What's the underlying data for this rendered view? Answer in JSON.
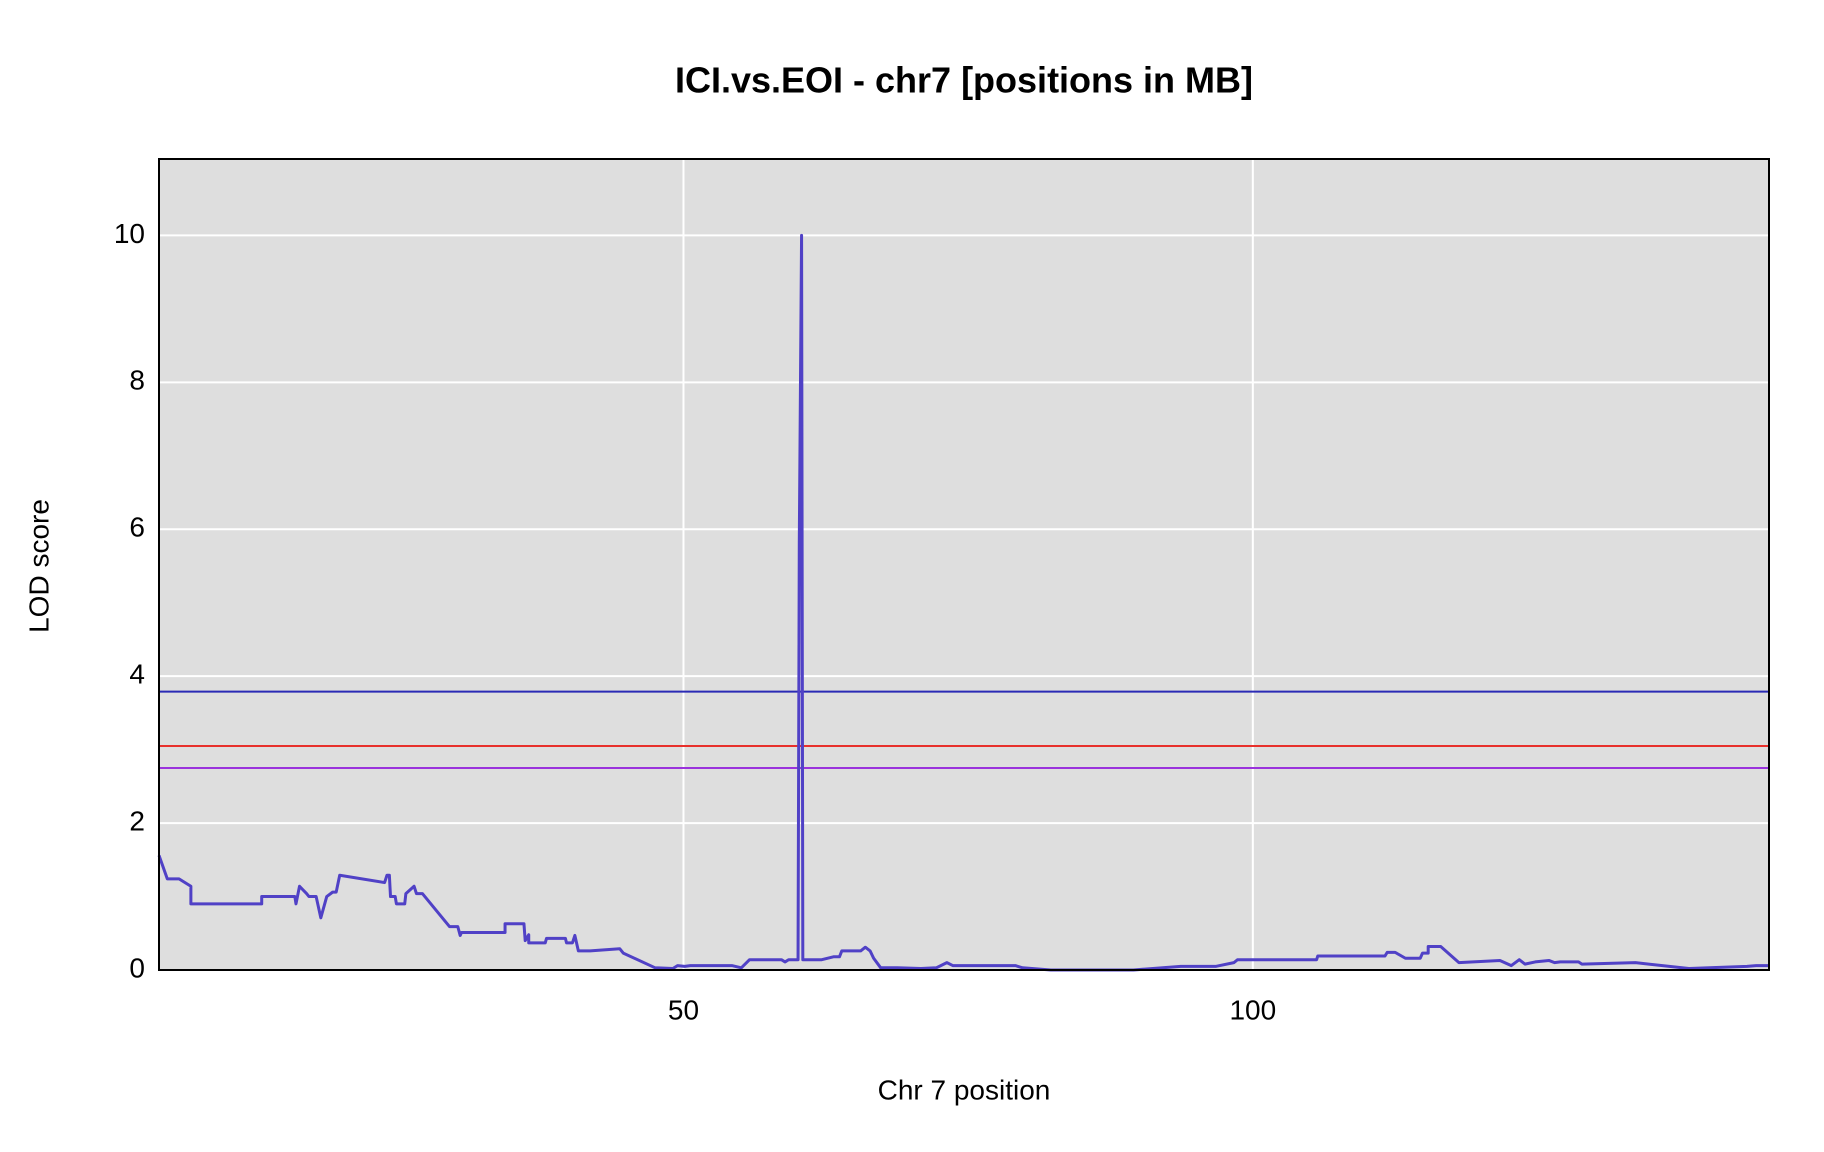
{
  "chart_data": {
    "type": "line",
    "title": "ICI.vs.EOI - chr7 [positions in MB]",
    "x_label": "Chr 7 position",
    "y_label": "LOD score",
    "background": "#dedede",
    "grid": true,
    "xlim": [
      3.94,
      145.33
    ],
    "xticks": [
      50,
      100
    ],
    "ylim": [
      0,
      11.04
    ],
    "yticks": [
      0,
      2,
      4,
      6,
      8,
      10
    ],
    "x": [
      3.94,
      4.67,
      5.7,
      6.74,
      6.74,
      10.16,
      12.96,
      12.96,
      15.87,
      15.97,
      16.28,
      16.9,
      17.11,
      17.74,
      18.15,
      18.67,
      19.19,
      19.5,
      19.81,
      23.75,
      23.96,
      24.17,
      24.27,
      24.68,
      24.79,
      25.52,
      25.62,
      26.34,
      26.55,
      27.07,
      29.46,
      30.18,
      30.39,
      30.5,
      34.33,
      34.33,
      35.99,
      36.1,
      36.41,
      36.41,
      37.86,
      37.97,
      39.63,
      39.73,
      40.25,
      40.46,
      40.77,
      41.8,
      44.4,
      44.71,
      47.51,
      49.07,
      49.48,
      50.1,
      50.6,
      54.25,
      55.08,
      55.8,
      58.6,
      58.92,
      59.23,
      60.06,
      60.17,
      60.37,
      60.48,
      62.14,
      63.17,
      63.7,
      63.9,
      65.56,
      65.97,
      66.39,
      66.7,
      67.32,
      68.78,
      70.85,
      72.2,
      72.6,
      73.13,
      73.65,
      79.15,
      79.77,
      80.6,
      82.26,
      89.52,
      93.67,
      96.78,
      98.34,
      98.65,
      105.6,
      105.7,
      111.6,
      111.8,
      112.5,
      113.4,
      114.7,
      114.9,
      115.4,
      115.4,
      116.5,
      118.1,
      121.7,
      122.7,
      123.4,
      123.9,
      124.8,
      126.0,
      126.5,
      127.0,
      128.6,
      128.9,
      133.6,
      138.3,
      143.4,
      144.2,
      145.33
    ],
    "series": [
      {
        "color": "#5041c6",
        "values": [
          1.56,
          1.24,
          1.24,
          1.14,
          0.9,
          0.9,
          0.9,
          1.0,
          1.0,
          0.9,
          1.14,
          1.04,
          1.0,
          1.0,
          0.71,
          1.0,
          1.06,
          1.06,
          1.29,
          1.19,
          1.29,
          1.29,
          1.0,
          1.0,
          0.9,
          0.9,
          1.04,
          1.14,
          1.04,
          1.04,
          0.59,
          0.59,
          0.47,
          0.51,
          0.51,
          0.63,
          0.63,
          0.4,
          0.48,
          0.37,
          0.37,
          0.43,
          0.43,
          0.37,
          0.37,
          0.47,
          0.26,
          0.26,
          0.29,
          0.23,
          0.03,
          0.02,
          0.06,
          0.05,
          0.06,
          0.06,
          0.03,
          0.14,
          0.14,
          0.11,
          0.14,
          0.14,
          5.82,
          10.0,
          0.14,
          0.14,
          0.18,
          0.18,
          0.26,
          0.26,
          0.31,
          0.26,
          0.16,
          0.03,
          0.03,
          0.02,
          0.03,
          0.06,
          0.1,
          0.06,
          0.06,
          0.03,
          0.02,
          0,
          0,
          0.05,
          0.05,
          0.1,
          0.14,
          0.14,
          0.19,
          0.19,
          0.24,
          0.24,
          0.16,
          0.16,
          0.23,
          0.23,
          0.32,
          0.32,
          0.1,
          0.13,
          0.06,
          0.14,
          0.08,
          0.11,
          0.13,
          0.1,
          0.11,
          0.11,
          0.08,
          0.1,
          0.02,
          0.05,
          0.06,
          0.06
        ]
      }
    ],
    "hlines": [
      {
        "value": 3.79,
        "color": "#2a2ab5"
      },
      {
        "value": 3.05,
        "color": "#e8302c"
      },
      {
        "value": 2.75,
        "color": "#9a33dc"
      }
    ]
  }
}
